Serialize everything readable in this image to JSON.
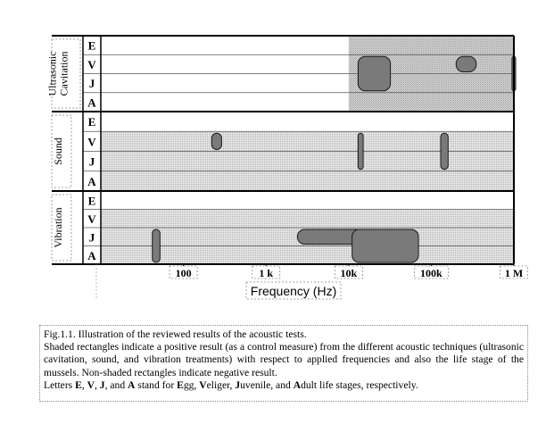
{
  "chart_data": {
    "type": "range-chart",
    "xlabel": "Frequency (Hz)",
    "x_scale": "log",
    "xlim": [
      10,
      1000000
    ],
    "x_ticks": [
      {
        "value": 100,
        "label": "100"
      },
      {
        "value": 1000,
        "label": "1 k"
      },
      {
        "value": 10000,
        "label": "10k"
      },
      {
        "value": 100000,
        "label": "100k"
      },
      {
        "value": 1000000,
        "label": "1 M"
      }
    ],
    "stage_labels": [
      "E",
      "V",
      "J",
      "A"
    ],
    "groups": [
      {
        "label": "Ultrasonic Cavitation",
        "label_lines": [
          "Ultrasonic",
          "Cavitation"
        ],
        "band_x_from": 10000,
        "shaded_rows": [],
        "rects": [
          {
            "x_from": 13000,
            "x_to": 32000,
            "row_from": 1,
            "row_to": 2
          },
          {
            "x_from": 200000,
            "x_to": 350000,
            "row_from": 1,
            "row_to": 1
          },
          {
            "x_from": 950000,
            "x_to": 1050000,
            "row_from": 1,
            "row_to": 2
          }
        ]
      },
      {
        "label": "Sound",
        "label_lines": [
          "Sound"
        ],
        "band_x_from": 10,
        "shaded_rows": [
          1,
          2,
          3
        ],
        "rects": [
          {
            "x_from": 220,
            "x_to": 290,
            "row_from": 1,
            "row_to": 1
          },
          {
            "x_from": 13000,
            "x_to": 15000,
            "row_from": 1,
            "row_to": 2
          },
          {
            "x_from": 130000,
            "x_to": 160000,
            "row_from": 1,
            "row_to": 2
          }
        ]
      },
      {
        "label": "Vibration",
        "label_lines": [
          "Vibration"
        ],
        "band_x_from": 10,
        "shaded_rows": [
          1,
          2,
          3
        ],
        "rects": [
          {
            "x_from": 42,
            "x_to": 52,
            "row_from": 2,
            "row_to": 3
          },
          {
            "x_from": 2400,
            "x_to": 15000,
            "row_from": 2,
            "row_to": 2
          },
          {
            "x_from": 11000,
            "x_to": 70000,
            "row_from": 2,
            "row_to": 3
          }
        ]
      }
    ]
  },
  "caption": {
    "line1": "Fig.1.1.  Illustration of the reviewed results of the acoustic tests.",
    "line2": "Shaded rectangles indicate a positive result (as a control measure) from the different acoustic techniques (ultrasonic cavitation, sound, and vibration treatments) with respect to applied frequencies and also the life stage of the mussels. Non-shaded rectangles indicate negative result.",
    "line3_prefix": "Letters ",
    "letter_e": "E",
    "letter_v": "V",
    "letter_j": "J",
    "letter_a": "A",
    "sep_1": ", ",
    "sep_2": ", ",
    "sep_3": ", and ",
    "middle": " stand for ",
    "word_egg_initial": "E",
    "word_egg_rest": "gg, ",
    "word_veliger_initial": "V",
    "word_veliger_rest": "eliger, ",
    "word_juvenile_initial": "J",
    "word_juvenile_rest": "uvenile, and ",
    "word_adult_initial": "A",
    "word_adult_rest": "dult life stages, respectively."
  }
}
